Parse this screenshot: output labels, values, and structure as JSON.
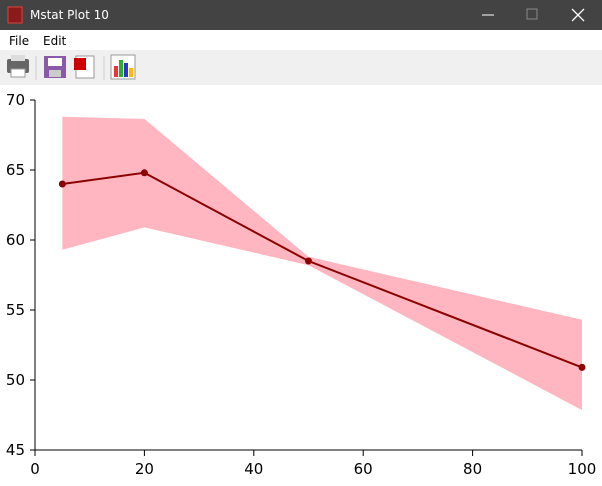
{
  "window": {
    "title": "Mstat Plot 10",
    "menu": [
      "File",
      "Edit"
    ]
  },
  "chart_data": {
    "type": "line",
    "x": [
      5,
      20,
      50,
      100
    ],
    "values": [
      64.0,
      64.8,
      58.5,
      50.9
    ],
    "upper": [
      68.8,
      68.65,
      58.8,
      54.3
    ],
    "lower": [
      59.3,
      60.9,
      58.2,
      47.85
    ],
    "color": "#8b0000",
    "band_color": "#ffb6c1",
    "xlim": [
      0,
      100
    ],
    "xticks": [
      0,
      20,
      40,
      60,
      80,
      100
    ],
    "ylim": [
      45,
      70
    ],
    "yticks": [
      45,
      50,
      55,
      60,
      65,
      70
    ]
  }
}
